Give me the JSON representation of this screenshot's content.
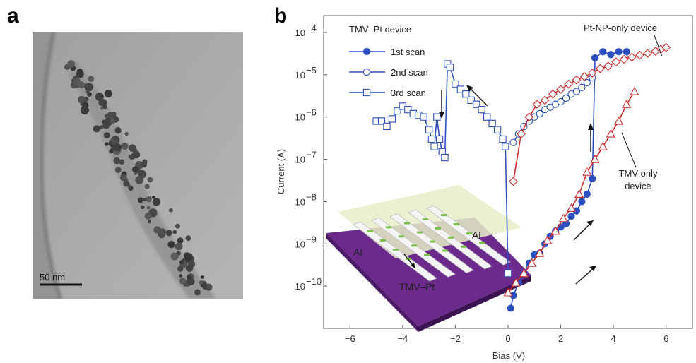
{
  "panels": {
    "a": "a",
    "b": "b"
  },
  "tem": {
    "scale_bar_label": "50 nm"
  },
  "inset": {
    "electrode_left": "Al",
    "electrode_right": "Al",
    "wire_label": "TMV–Pt"
  },
  "chart_data": {
    "type": "scatter",
    "xlabel": "Bias (V)",
    "ylabel": "Current (A)",
    "xlim": [
      -7,
      7
    ],
    "ylim_log10": [
      -11,
      -3.6
    ],
    "y_scale": "log",
    "x_ticks": [
      -6,
      -4,
      -2,
      0,
      2,
      4,
      6
    ],
    "x_tick_labels": [
      "−6",
      "−4",
      "−2",
      "0",
      "2",
      "4",
      "6"
    ],
    "y_tick_exponents": [
      -10,
      -9,
      -8,
      -7,
      -6,
      -5,
      -4
    ],
    "y_tick_base": "10",
    "legend_title": "TMV–Pt device",
    "legend_position": "top-left",
    "annotations": {
      "pt_np": "Pt-NP-only device",
      "tmv_only_1": "TMV-only",
      "tmv_only_2": "device"
    },
    "colors": {
      "blue": "#2c4fc0",
      "red": "#cc2a2a",
      "axis": "#555555",
      "inset_purple": "#6b2a8c"
    },
    "series": [
      {
        "name": "1st scan",
        "marker": "filled-circle",
        "color": "#2c4fc0",
        "x": [
          0.1,
          0.2,
          0.4,
          0.6,
          0.8,
          1.0,
          1.2,
          1.4,
          1.6,
          1.8,
          2.0,
          2.2,
          2.4,
          2.6,
          2.8,
          3.0,
          3.2,
          3.3,
          3.6,
          3.9,
          4.2,
          4.5
        ],
        "y": [
          3e-11,
          6e-11,
          1.2e-10,
          2e-10,
          3.5e-10,
          5.5e-10,
          6e-10,
          1e-09,
          1.5e-09,
          2e-09,
          2.5e-09,
          3e-09,
          4.5e-09,
          6e-09,
          1e-08,
          1.5e-08,
          3.5e-08,
          2.5e-05,
          3.5e-05,
          3e-05,
          3.5e-05,
          3.5e-05
        ]
      },
      {
        "name": "2nd scan",
        "marker": "open-circle",
        "color": "#2c4fc0",
        "x": [
          0.2,
          0.4,
          0.6,
          0.8,
          1.0,
          1.2,
          1.4,
          1.6,
          1.8,
          2.0,
          2.2,
          2.4,
          2.6,
          2.8,
          3.0,
          3.2
        ],
        "y": [
          2.5e-07,
          4e-07,
          6e-07,
          8e-07,
          1e-06,
          1.2e-06,
          1.5e-06,
          1.7e-06,
          2e-06,
          2.3e-06,
          2.8e-06,
          3.5e-06,
          4e-06,
          5e-06,
          6.5e-06,
          8.5e-06
        ]
      },
      {
        "name": "3rd scan",
        "marker": "open-square",
        "color": "#2c4fc0",
        "x": [
          -5.0,
          -4.8,
          -4.6,
          -4.4,
          -4.2,
          -4.0,
          -3.8,
          -3.6,
          -3.4,
          -3.2,
          -3.0,
          -2.9,
          -2.8,
          -2.7,
          -2.6,
          -2.5,
          -2.4,
          -2.3,
          -2.2,
          -2.0,
          -1.8,
          -1.6,
          -1.4,
          -1.2,
          -1.0,
          -0.8,
          -0.6,
          -0.4,
          -0.2,
          -0.1,
          0.0
        ],
        "y": [
          8e-07,
          8e-07,
          6e-07,
          9e-07,
          1.4e-06,
          1.8e-06,
          1.5e-06,
          1.2e-06,
          1.1e-06,
          1e-06,
          5e-07,
          3e-07,
          2e-07,
          1e-06,
          3e-07,
          1.5e-07,
          1.1e-07,
          1.8e-05,
          1.5e-05,
          6e-06,
          4.5e-06,
          3.5e-06,
          2.5e-06,
          2e-06,
          1.5e-06,
          1e-06,
          7e-07,
          5e-07,
          3e-07,
          2e-07,
          2e-10
        ]
      },
      {
        "name": "Pt-NP-only device",
        "marker": "open-diamond",
        "color": "#cc2a2a",
        "x": [
          0.2,
          0.5,
          0.8,
          1.1,
          1.4,
          1.7,
          2.0,
          2.3,
          2.6,
          2.9,
          3.2,
          3.5,
          3.8,
          4.1,
          4.4,
          4.7,
          5.0,
          5.3,
          5.6,
          5.8,
          6.0
        ],
        "y": [
          3e-08,
          4e-07,
          1e-06,
          2e-06,
          2.5e-06,
          3.5e-06,
          4.5e-06,
          6e-06,
          7.5e-06,
          9e-06,
          1.1e-05,
          1.4e-05,
          1.6e-05,
          2e-05,
          2.3e-05,
          2.6e-05,
          2.9e-05,
          3.2e-05,
          3.6e-05,
          4e-05,
          4.4e-05
        ]
      },
      {
        "name": "TMV-only device",
        "marker": "open-triangle",
        "color": "#cc2a2a",
        "x": [
          0.0,
          0.3,
          0.6,
          0.9,
          1.2,
          1.5,
          1.8,
          2.1,
          2.4,
          2.7,
          3.0,
          3.3,
          3.6,
          3.9,
          4.2,
          4.5,
          4.8
        ],
        "y": [
          7e-11,
          1.2e-10,
          2e-10,
          3.5e-10,
          6e-10,
          1.2e-09,
          2e-09,
          4e-09,
          7e-09,
          1.5e-08,
          5e-08,
          1e-07,
          2e-07,
          4e-07,
          8e-07,
          2e-06,
          4e-06
        ]
      }
    ]
  }
}
